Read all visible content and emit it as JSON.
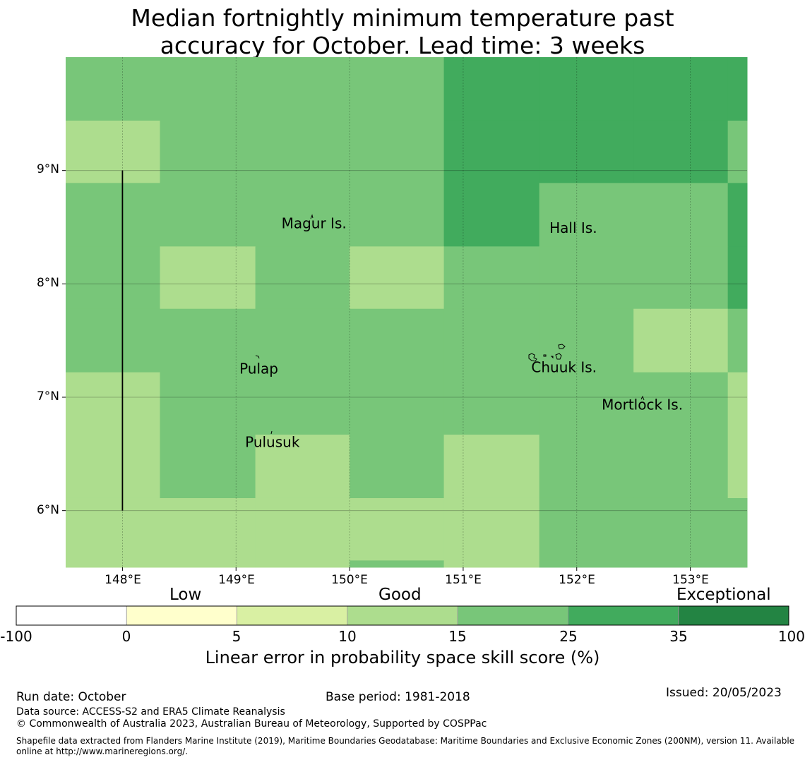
{
  "title_line1": "Median fortnightly minimum temperature past",
  "title_line2": "accuracy for October. Lead time: 3 weeks",
  "map": {
    "lon_range": [
      147.5,
      153.5
    ],
    "lat_range": [
      5.5,
      10.0
    ],
    "lat_ticks": [
      {
        "value": 9,
        "label": "9°N"
      },
      {
        "value": 8,
        "label": "8°N"
      },
      {
        "value": 7,
        "label": "7°N"
      },
      {
        "value": 6,
        "label": "6°N"
      }
    ],
    "lon_ticks": [
      {
        "value": 148,
        "label": "148°E"
      },
      {
        "value": 149,
        "label": "149°E"
      },
      {
        "value": 150,
        "label": "150°E"
      },
      {
        "value": 151,
        "label": "151°E"
      },
      {
        "value": 152,
        "label": "152°E"
      },
      {
        "value": 153,
        "label": "153°E"
      }
    ],
    "grid_lon_edges": [
      147.5,
      148.33,
      149.17,
      150.0,
      150.83,
      151.67,
      152.5,
      153.33,
      153.5
    ],
    "grid_lat_edges": [
      10.0,
      9.44,
      8.89,
      8.33,
      7.78,
      7.22,
      6.67,
      6.11,
      5.56,
      5.5
    ],
    "cell_classes": [
      [
        4,
        4,
        4,
        4,
        5,
        5,
        5,
        5
      ],
      [
        3,
        4,
        4,
        4,
        5,
        5,
        5,
        4
      ],
      [
        4,
        4,
        4,
        4,
        5,
        4,
        4,
        5
      ],
      [
        4,
        3,
        4,
        3,
        4,
        4,
        4,
        5
      ],
      [
        4,
        4,
        4,
        4,
        4,
        4,
        3,
        4
      ],
      [
        3,
        4,
        4,
        4,
        4,
        4,
        4,
        3
      ],
      [
        3,
        4,
        3,
        4,
        3,
        4,
        4,
        3
      ],
      [
        3,
        3,
        3,
        3,
        3,
        4,
        4,
        4
      ],
      [
        3,
        3,
        3,
        4,
        3,
        4,
        4,
        4
      ]
    ],
    "boundary_line": {
      "lon": 148.0,
      "lat_from": 6.0,
      "lat_to": 9.0
    },
    "islands": [
      {
        "name": "Magur Is.",
        "lon": 149.4,
        "lat": 8.49
      },
      {
        "name": "Hall Is.",
        "lon": 151.76,
        "lat": 8.45
      },
      {
        "name": "Pulap",
        "lon": 149.03,
        "lat": 7.21
      },
      {
        "name": "Chuuk Is.",
        "lon": 151.6,
        "lat": 7.22
      },
      {
        "name": "Mortlock Is.",
        "lon": 152.22,
        "lat": 6.89
      },
      {
        "name": "Pulusuk",
        "lon": 149.08,
        "lat": 6.56
      }
    ]
  },
  "colorbar": {
    "colors": [
      "#ffffff",
      "#ffffcc",
      "#d9f0a3",
      "#addd8e",
      "#78c679",
      "#41ab5d",
      "#238443"
    ],
    "tick_labels": [
      "-100",
      "0",
      "5",
      "10",
      "15",
      "25",
      "35",
      "100"
    ],
    "categories": [
      "Low",
      "Good",
      "Exceptional"
    ],
    "title": "Linear error in probability space skill score (%)"
  },
  "footer": {
    "run_date": "Run date: October",
    "base_period": "Base period: 1981-2018",
    "issued": "Issued: 20/05/2023",
    "data_source": "Data source: ACCESS-S2 and ERA5 Climate Reanalysis",
    "copyright": "© Commonwealth of Australia 2023, Australian Bureau of Meteorology, Supported by COSPPac",
    "shapefile": "Shapefile data extracted from Flanders Marine Institute (2019), Maritime Boundaries Geodatabase: Maritime Boundaries and Exclusive Economic Zones (200NM), version 11. Available online at http://www.marineregions.org/."
  }
}
